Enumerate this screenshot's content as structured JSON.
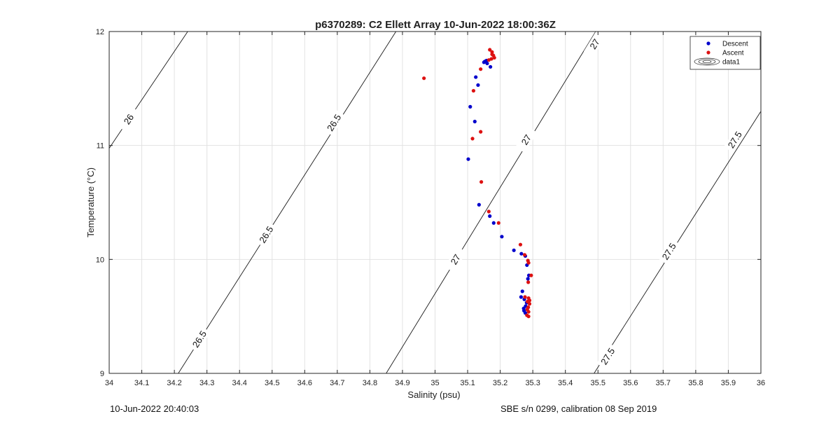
{
  "chart_data": {
    "type": "scatter",
    "title": "p6370289: C2 Ellett Array 10-Jun-2022 18:00:36Z",
    "xlabel": "Salinity (psu)",
    "ylabel": "Temperature (°C)",
    "xlim": [
      34,
      36
    ],
    "ylim": [
      9,
      12
    ],
    "xticks": [
      "34",
      "34.1",
      "34.2",
      "34.3",
      "34.4",
      "34.5",
      "34.6",
      "34.7",
      "34.8",
      "34.9",
      "35",
      "35.1",
      "35.2",
      "35.3",
      "35.4",
      "35.5",
      "35.6",
      "35.7",
      "35.8",
      "35.9",
      "36"
    ],
    "yticks": [
      "9",
      "10",
      "11",
      "12"
    ],
    "grid": true,
    "legend_position": "top-right",
    "legend": [
      "Descent",
      "Ascent",
      "data1"
    ],
    "series": [
      {
        "name": "Descent",
        "color": "#0000cc",
        "points": [
          [
            35.15,
            11.73
          ],
          [
            35.155,
            11.74
          ],
          [
            35.16,
            11.72
          ],
          [
            35.158,
            11.745
          ],
          [
            35.152,
            11.735
          ],
          [
            35.17,
            11.69
          ],
          [
            35.125,
            11.6
          ],
          [
            35.132,
            11.53
          ],
          [
            35.108,
            11.34
          ],
          [
            35.122,
            11.21
          ],
          [
            35.102,
            10.88
          ],
          [
            35.135,
            10.48
          ],
          [
            35.168,
            10.38
          ],
          [
            35.18,
            10.32
          ],
          [
            35.205,
            10.2
          ],
          [
            35.242,
            10.08
          ],
          [
            35.265,
            10.05
          ],
          [
            35.277,
            10.03
          ],
          [
            35.282,
            9.95
          ],
          [
            35.288,
            9.86
          ],
          [
            35.285,
            9.83
          ],
          [
            35.268,
            9.72
          ],
          [
            35.264,
            9.67
          ],
          [
            35.274,
            9.65
          ],
          [
            35.281,
            9.62
          ],
          [
            35.278,
            9.59
          ],
          [
            35.272,
            9.57
          ],
          [
            35.273,
            9.55
          ],
          [
            35.277,
            9.53
          ]
        ]
      },
      {
        "name": "Ascent",
        "color": "#dd1111",
        "points": [
          [
            35.168,
            11.84
          ],
          [
            35.175,
            11.82
          ],
          [
            35.179,
            11.79
          ],
          [
            35.182,
            11.77
          ],
          [
            35.173,
            11.76
          ],
          [
            35.165,
            11.75
          ],
          [
            34.966,
            11.59
          ],
          [
            35.118,
            11.48
          ],
          [
            35.14,
            11.67
          ],
          [
            35.175,
            11.8
          ],
          [
            35.14,
            11.12
          ],
          [
            35.115,
            11.06
          ],
          [
            35.142,
            10.68
          ],
          [
            35.165,
            10.42
          ],
          [
            35.195,
            10.32
          ],
          [
            35.262,
            10.13
          ],
          [
            35.275,
            10.04
          ],
          [
            35.285,
            9.99
          ],
          [
            35.287,
            9.97
          ],
          [
            35.295,
            9.86
          ],
          [
            35.286,
            9.8
          ],
          [
            35.276,
            9.67
          ],
          [
            35.287,
            9.66
          ],
          [
            35.29,
            9.64
          ],
          [
            35.284,
            9.63
          ],
          [
            35.29,
            9.61
          ],
          [
            35.286,
            9.58
          ],
          [
            35.283,
            9.56
          ],
          [
            35.287,
            9.54
          ],
          [
            35.282,
            9.51
          ],
          [
            35.287,
            9.5
          ]
        ]
      }
    ],
    "contours": [
      {
        "label": "26",
        "points": [
          [
            34.0,
            10.976
          ],
          [
            34.241,
            12.0
          ]
        ],
        "labels_at": [
          [
            34.06,
            11.23
          ]
        ]
      },
      {
        "label": "26.5",
        "points": [
          [
            34.212,
            9.0
          ],
          [
            34.88,
            12.0
          ]
        ],
        "labels_at": [
          [
            34.277,
            9.3
          ],
          [
            34.482,
            10.218
          ],
          [
            34.69,
            11.2
          ]
        ]
      },
      {
        "label": "27",
        "points": [
          [
            34.85,
            9.0
          ],
          [
            35.493,
            12.0
          ]
        ],
        "labels_at": [
          [
            35.063,
            10.0
          ],
          [
            35.28,
            11.05
          ],
          [
            35.49,
            11.89
          ]
        ]
      },
      {
        "label": "27.5",
        "points": [
          [
            35.488,
            9.0
          ],
          [
            36.0,
            11.3
          ]
        ],
        "labels_at": [
          [
            35.53,
            9.15
          ],
          [
            35.718,
            10.07
          ],
          [
            35.92,
            11.05
          ]
        ]
      }
    ],
    "footer_left": "10-Jun-2022 20:40:03",
    "footer_right": "SBE s/n 0299, calibration 08 Sep 2019"
  }
}
